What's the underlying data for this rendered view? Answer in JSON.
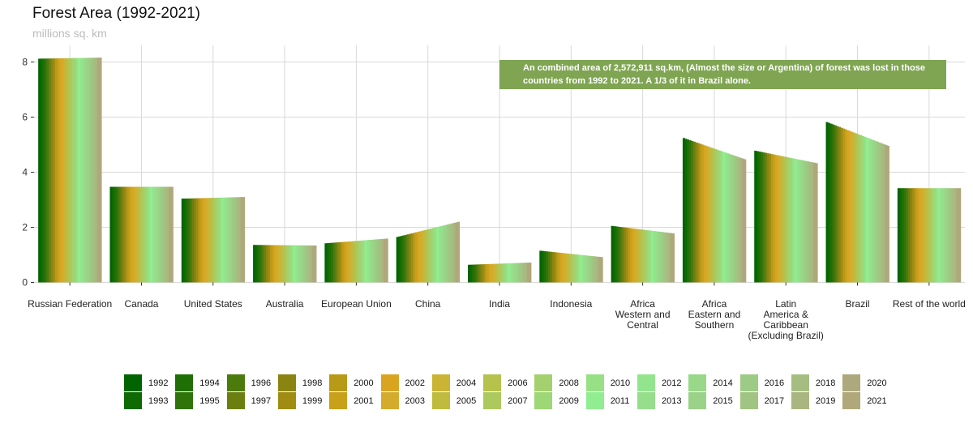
{
  "chart_data": {
    "type": "bar",
    "title": "Forest Area (1992-2021)",
    "subtitle": "millions sq. km",
    "ylim": [
      0,
      8.6
    ],
    "yticks": [
      0,
      2,
      4,
      6,
      8
    ],
    "grid": true,
    "legend_position": "bottom",
    "annotation": "An combined area of 2,572,911 sq.km, (Almost the size or Argentina) of forest was lost in those countries from 1992 to 2021. A 1/3 of it in Brazil alone.",
    "annotation_color": "#7fa552",
    "years": [
      1992,
      1993,
      1994,
      1995,
      1996,
      1997,
      1998,
      1999,
      2000,
      2001,
      2002,
      2003,
      2004,
      2005,
      2006,
      2007,
      2008,
      2009,
      2010,
      2011,
      2012,
      2013,
      2014,
      2015,
      2016,
      2017,
      2018,
      2019,
      2020,
      2021
    ],
    "year_colors": [
      "#006400",
      "#0f6a03",
      "#1f6f06",
      "#2f7409",
      "#4b7a0d",
      "#6a7f10",
      "#8a8412",
      "#a08b13",
      "#b89a17",
      "#c9a01a",
      "#d9a521",
      "#d4ab2c",
      "#cbb333",
      "#c0bb3e",
      "#b5c24c",
      "#acc95e",
      "#a4d06e",
      "#9dd776",
      "#97e084",
      "#90ee90",
      "#93e58d",
      "#96de8b",
      "#98d888",
      "#9ad287",
      "#9ccb85",
      "#a1c482",
      "#a6bd81",
      "#aab67f",
      "#ada97d",
      "#b0a87a"
    ],
    "categories": [
      {
        "label": [
          "Russian Federation"
        ],
        "start": 8.12,
        "end": 8.16
      },
      {
        "label": [
          "Canada"
        ],
        "start": 3.47,
        "end": 3.47
      },
      {
        "label": [
          "United States"
        ],
        "start": 3.04,
        "end": 3.1
      },
      {
        "label": [
          "Australia"
        ],
        "start": 1.36,
        "end": 1.34
      },
      {
        "label": [
          "European Union"
        ],
        "start": 1.42,
        "end": 1.59
      },
      {
        "label": [
          "China"
        ],
        "start": 1.65,
        "end": 2.2
      },
      {
        "label": [
          "India"
        ],
        "start": 0.64,
        "end": 0.72
      },
      {
        "label": [
          "Indonesia"
        ],
        "start": 1.15,
        "end": 0.92
      },
      {
        "label": [
          "Africa",
          "Western and",
          "Central"
        ],
        "start": 2.05,
        "end": 1.78
      },
      {
        "label": [
          "Africa",
          "Eastern and",
          "Southern"
        ],
        "start": 5.24,
        "end": 4.47
      },
      {
        "label": [
          "Latin",
          "America &",
          "Caribbean",
          "(Excluding Brazil)"
        ],
        "start": 4.78,
        "end": 4.33
      },
      {
        "label": [
          "Brazil"
        ],
        "start": 5.82,
        "end": 4.96
      },
      {
        "label": [
          "Rest of the world"
        ],
        "start": 3.42,
        "end": 3.42
      }
    ]
  }
}
